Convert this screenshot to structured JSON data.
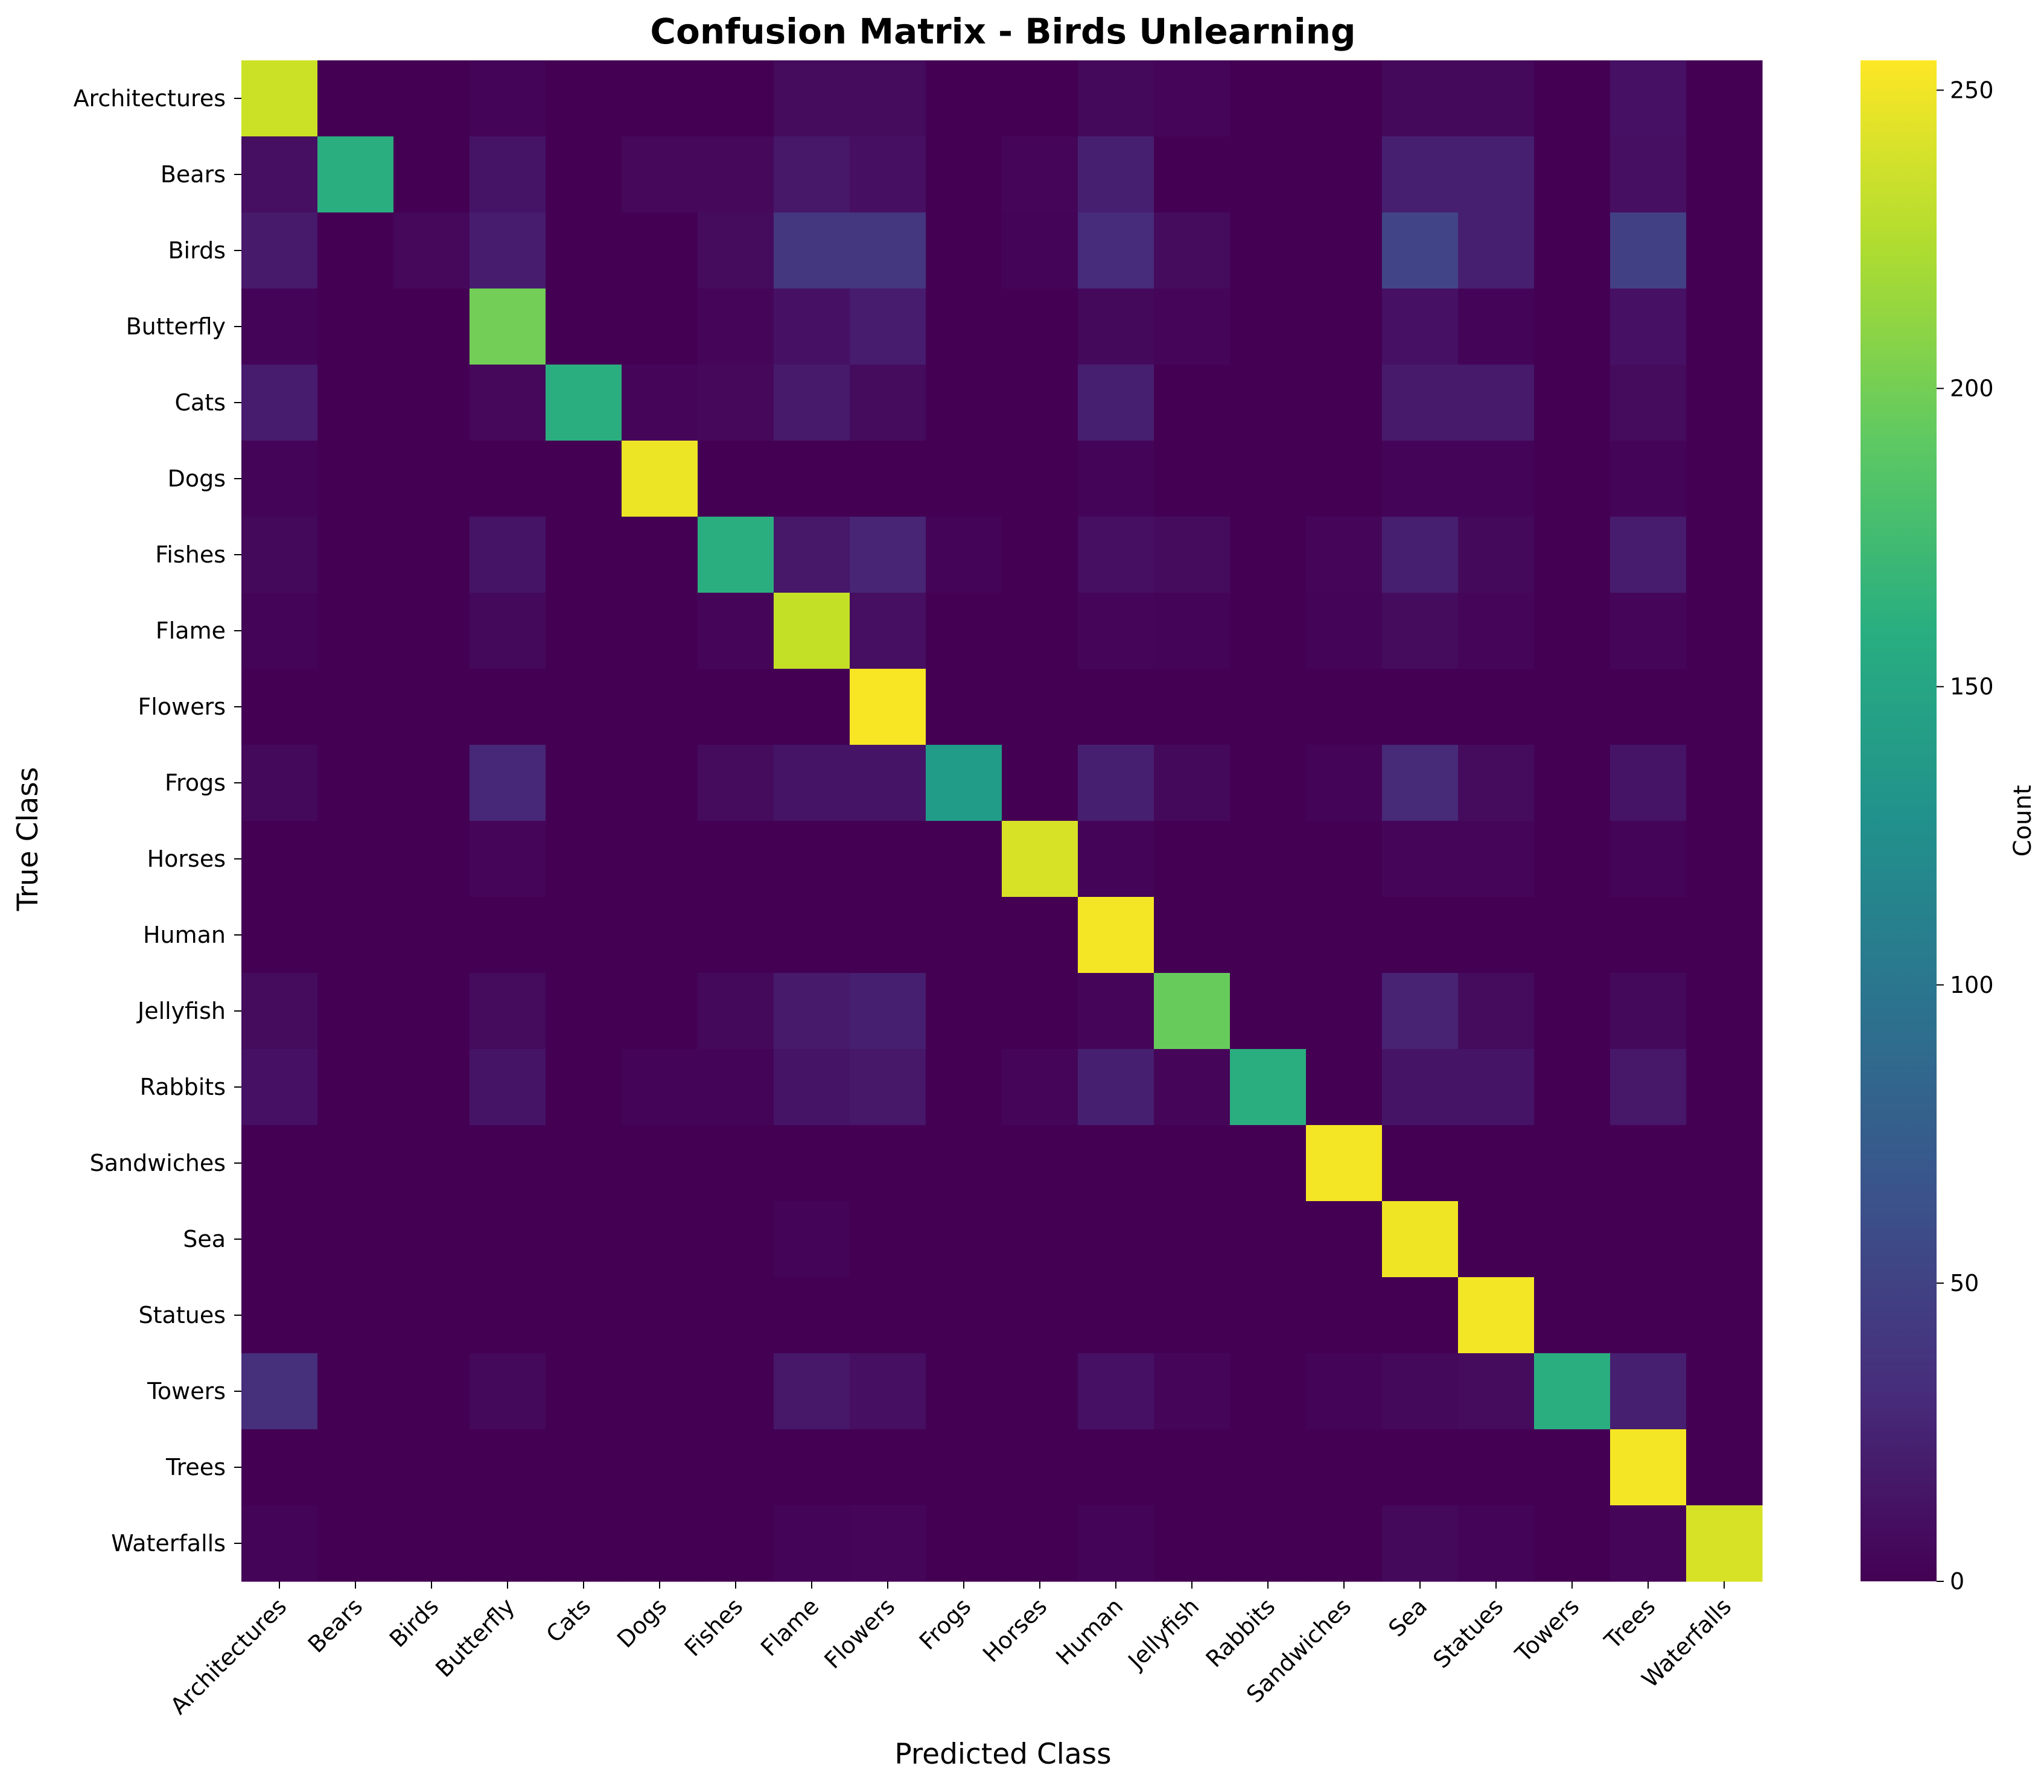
{
  "chart_data": {
    "type": "heatmap",
    "title": "Confusion Matrix - Birds Unlearning",
    "xlabel": "Predicted Class",
    "ylabel": "True Class",
    "colorbar_label": "Count",
    "colormap": "viridis",
    "value_range": [
      0,
      255
    ],
    "colorbar_ticks": [
      0,
      50,
      100,
      150,
      200,
      250
    ],
    "grid": false,
    "x_categories": [
      "Architectures",
      "Bears",
      "Birds",
      "Butterfly",
      "Cats",
      "Dogs",
      "Fishes",
      "Flame",
      "Flowers",
      "Frogs",
      "Horses",
      "Human",
      "Jellyfish",
      "Rabbits",
      "Sandwiches",
      "Sea",
      "Statues",
      "Towers",
      "Trees",
      "Waterfalls"
    ],
    "y_categories": [
      "Architectures",
      "Bears",
      "Birds",
      "Butterfly",
      "Cats",
      "Dogs",
      "Fishes",
      "Flame",
      "Flowers",
      "Frogs",
      "Horses",
      "Human",
      "Jellyfish",
      "Rabbits",
      "Sandwiches",
      "Sea",
      "Statues",
      "Towers",
      "Trees",
      "Waterfalls"
    ],
    "matrix": [
      [
        235,
        0,
        0,
        2,
        0,
        0,
        0,
        8,
        8,
        0,
        0,
        6,
        4,
        0,
        0,
        6,
        6,
        0,
        12,
        0
      ],
      [
        10,
        160,
        0,
        14,
        0,
        5,
        5,
        16,
        10,
        0,
        4,
        22,
        0,
        0,
        0,
        22,
        22,
        0,
        10,
        0
      ],
      [
        18,
        0,
        5,
        20,
        0,
        0,
        8,
        40,
        40,
        0,
        3,
        32,
        8,
        0,
        0,
        52,
        22,
        0,
        48,
        0
      ],
      [
        2,
        0,
        0,
        200,
        0,
        0,
        4,
        12,
        20,
        0,
        0,
        6,
        4,
        0,
        0,
        12,
        2,
        0,
        12,
        0
      ],
      [
        20,
        0,
        0,
        5,
        160,
        4,
        5,
        18,
        8,
        0,
        0,
        22,
        0,
        0,
        0,
        18,
        18,
        0,
        8,
        0
      ],
      [
        2,
        0,
        0,
        0,
        0,
        248,
        0,
        0,
        0,
        0,
        0,
        2,
        0,
        0,
        0,
        2,
        2,
        0,
        2,
        0
      ],
      [
        6,
        0,
        0,
        14,
        0,
        0,
        160,
        16,
        26,
        2,
        0,
        10,
        8,
        0,
        4,
        22,
        6,
        0,
        20,
        0
      ],
      [
        2,
        0,
        0,
        6,
        0,
        0,
        4,
        232,
        10,
        0,
        0,
        4,
        2,
        0,
        2,
        8,
        4,
        0,
        4,
        0
      ],
      [
        0,
        0,
        0,
        0,
        0,
        0,
        0,
        0,
        253,
        0,
        0,
        0,
        0,
        0,
        0,
        0,
        0,
        0,
        0,
        0
      ],
      [
        6,
        0,
        0,
        28,
        0,
        0,
        8,
        14,
        14,
        140,
        0,
        22,
        6,
        0,
        2,
        30,
        8,
        0,
        14,
        0
      ],
      [
        0,
        0,
        0,
        4,
        0,
        0,
        0,
        0,
        0,
        0,
        240,
        2,
        0,
        0,
        0,
        4,
        4,
        0,
        2,
        0
      ],
      [
        0,
        0,
        0,
        0,
        0,
        0,
        0,
        0,
        0,
        0,
        0,
        252,
        0,
        0,
        0,
        0,
        0,
        0,
        0,
        0
      ],
      [
        8,
        0,
        0,
        8,
        0,
        0,
        6,
        18,
        22,
        0,
        0,
        4,
        195,
        0,
        0,
        24,
        8,
        0,
        6,
        0
      ],
      [
        12,
        0,
        0,
        14,
        0,
        2,
        2,
        14,
        16,
        0,
        4,
        22,
        4,
        160,
        0,
        14,
        14,
        0,
        16,
        0
      ],
      [
        0,
        0,
        0,
        0,
        0,
        0,
        0,
        0,
        0,
        0,
        0,
        0,
        0,
        0,
        252,
        0,
        0,
        0,
        0,
        0
      ],
      [
        0,
        0,
        0,
        0,
        0,
        0,
        0,
        2,
        0,
        0,
        0,
        0,
        0,
        0,
        0,
        250,
        0,
        0,
        0,
        0
      ],
      [
        0,
        0,
        0,
        0,
        0,
        0,
        0,
        0,
        0,
        0,
        0,
        0,
        0,
        0,
        0,
        0,
        251,
        0,
        0,
        0
      ],
      [
        34,
        0,
        0,
        6,
        0,
        0,
        0,
        16,
        10,
        0,
        0,
        12,
        4,
        0,
        2,
        6,
        8,
        160,
        22,
        0
      ],
      [
        0,
        0,
        0,
        0,
        0,
        0,
        0,
        0,
        0,
        0,
        0,
        0,
        0,
        0,
        0,
        0,
        0,
        0,
        252,
        0
      ],
      [
        2,
        0,
        0,
        0,
        0,
        0,
        0,
        2,
        4,
        0,
        0,
        2,
        0,
        0,
        0,
        6,
        2,
        0,
        4,
        240
      ]
    ]
  }
}
